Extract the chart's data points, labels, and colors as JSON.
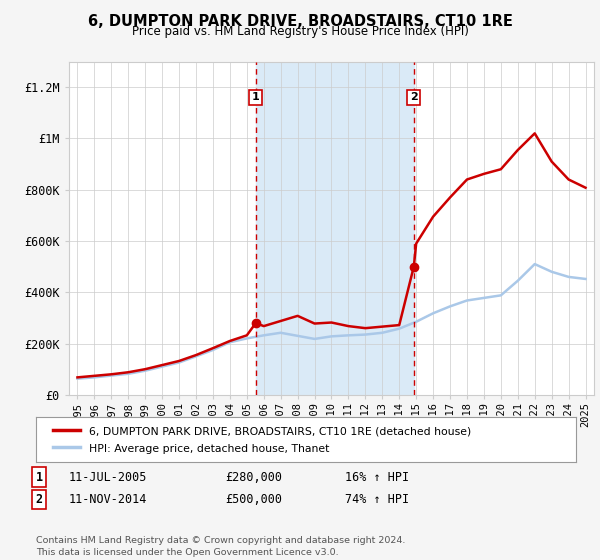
{
  "title": "6, DUMPTON PARK DRIVE, BROADSTAIRS, CT10 1RE",
  "subtitle": "Price paid vs. HM Land Registry's House Price Index (HPI)",
  "footnote": "Contains HM Land Registry data © Crown copyright and database right 2024.\nThis data is licensed under the Open Government Licence v3.0.",
  "legend_property": "6, DUMPTON PARK DRIVE, BROADSTAIRS, CT10 1RE (detached house)",
  "legend_hpi": "HPI: Average price, detached house, Thanet",
  "transactions": [
    {
      "label": "1",
      "date": "11-JUL-2005",
      "price": 280000,
      "hpi_pct": "16% ↑ HPI",
      "x": 2005.53
    },
    {
      "label": "2",
      "date": "11-NOV-2014",
      "price": 500000,
      "hpi_pct": "74% ↑ HPI",
      "x": 2014.86
    }
  ],
  "shaded_region": [
    2005.53,
    2014.86
  ],
  "hpi_line": {
    "years": [
      1995,
      1996,
      1997,
      1998,
      1999,
      2000,
      2001,
      2002,
      2003,
      2004,
      2005,
      2006,
      2007,
      2008,
      2009,
      2010,
      2011,
      2012,
      2013,
      2014,
      2015,
      2016,
      2017,
      2018,
      2019,
      2020,
      2021,
      2022,
      2023,
      2024,
      2025
    ],
    "values": [
      63000,
      68000,
      75000,
      82000,
      94000,
      110000,
      126000,
      150000,
      175000,
      205000,
      220000,
      232000,
      242000,
      230000,
      218000,
      228000,
      232000,
      235000,
      242000,
      258000,
      285000,
      318000,
      345000,
      368000,
      378000,
      388000,
      445000,
      510000,
      480000,
      460000,
      452000
    ]
  },
  "property_line": {
    "years": [
      1995,
      1996,
      1997,
      1998,
      1999,
      2000,
      2001,
      2002,
      2003,
      2004,
      2005,
      2005.53,
      2006,
      2007,
      2008,
      2009,
      2010,
      2011,
      2012,
      2013,
      2014,
      2014.86,
      2015,
      2016,
      2017,
      2018,
      2019,
      2020,
      2021,
      2022,
      2023,
      2024,
      2025
    ],
    "values": [
      68000,
      74000,
      80000,
      88000,
      100000,
      116000,
      132000,
      155000,
      182000,
      210000,
      232000,
      280000,
      268000,
      288000,
      308000,
      278000,
      282000,
      268000,
      260000,
      266000,
      272000,
      500000,
      590000,
      695000,
      770000,
      840000,
      862000,
      880000,
      955000,
      1020000,
      910000,
      840000,
      808000
    ]
  },
  "ylim": [
    0,
    1300000
  ],
  "xlim": [
    1994.5,
    2025.5
  ],
  "yticks": [
    0,
    200000,
    400000,
    600000,
    800000,
    1000000,
    1200000
  ],
  "ytick_labels": [
    "£0",
    "£200K",
    "£400K",
    "£600K",
    "£800K",
    "£1M",
    "£1.2M"
  ],
  "xticks": [
    1995,
    1996,
    1997,
    1998,
    1999,
    2000,
    2001,
    2002,
    2003,
    2004,
    2005,
    2006,
    2007,
    2008,
    2009,
    2010,
    2011,
    2012,
    2013,
    2014,
    2015,
    2016,
    2017,
    2018,
    2019,
    2020,
    2021,
    2022,
    2023,
    2024,
    2025
  ],
  "bg_color": "#f5f5f5",
  "plot_bg": "#ffffff",
  "hpi_color": "#aac8e8",
  "property_color": "#cc0000",
  "shade_color": "#daeaf7",
  "dashed_line_color": "#cc0000",
  "marker_color": "#cc0000",
  "grid_color": "#cccccc",
  "label_box_color": "#cc0000"
}
